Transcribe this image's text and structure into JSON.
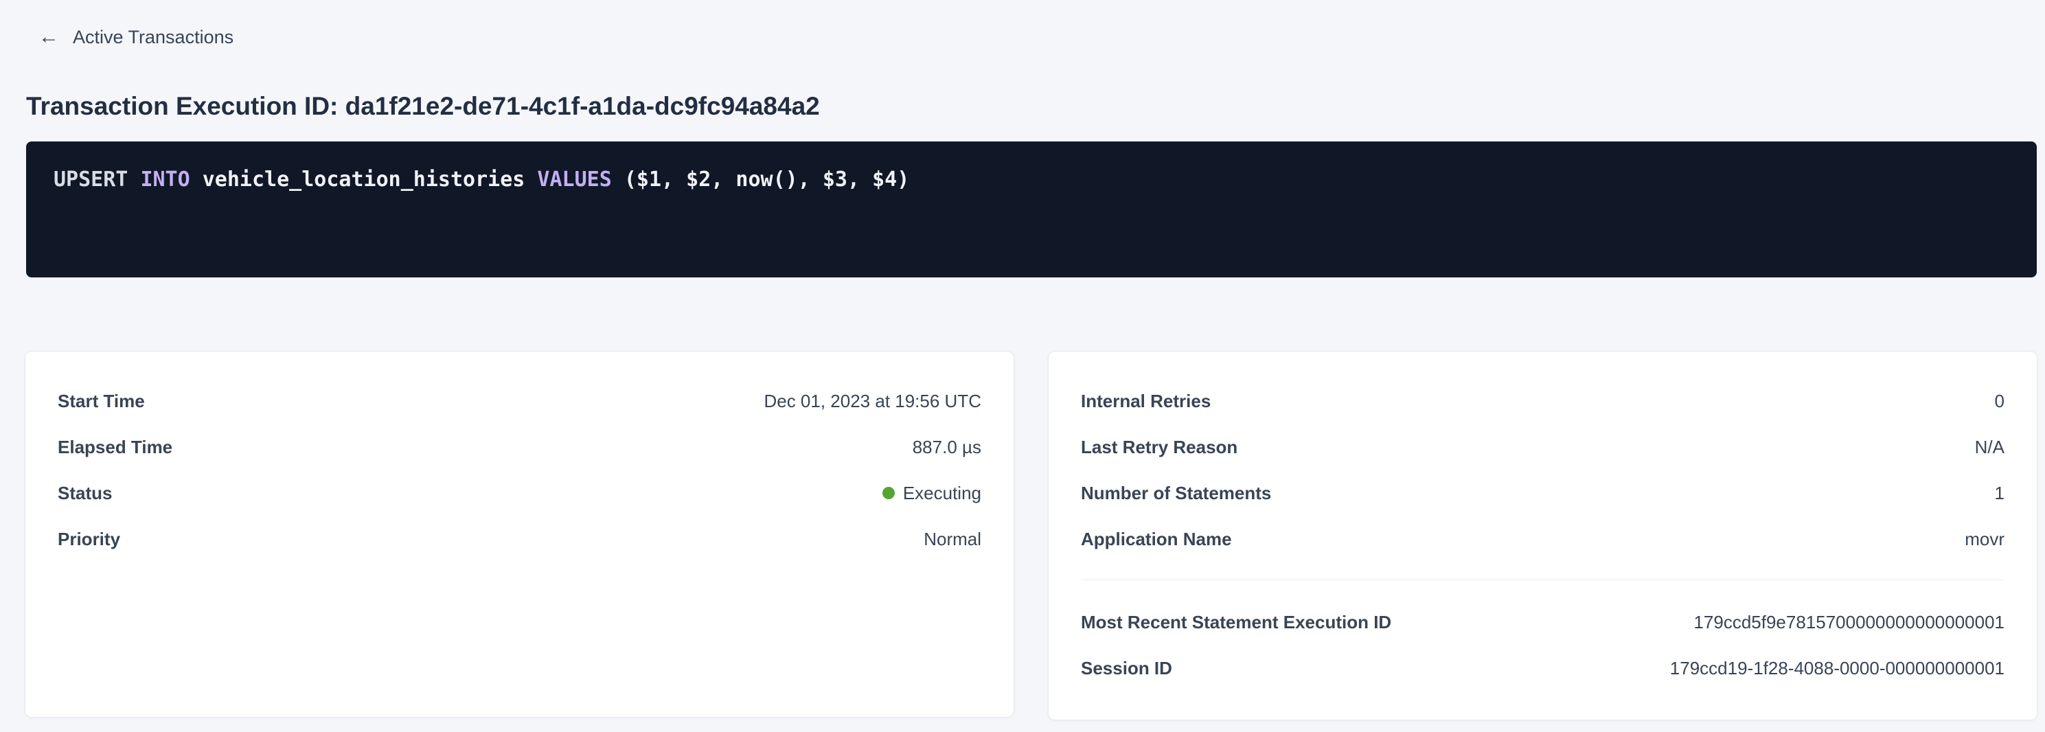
{
  "header": {
    "back_label": "Active Transactions",
    "back_arrow": "←",
    "title": "Transaction Execution ID: da1f21e2-de71-4c1f-a1da-dc9fc94a84a2"
  },
  "sql_box": {
    "statement": "UPSERT INTO vehicle_location_histories VALUES ($1, $2, now(), $3, $4)",
    "tokens": [
      {
        "text": "UPSERT ",
        "type": "plain"
      },
      {
        "text": "INTO ",
        "type": "keyword"
      },
      {
        "text": "vehicle_location_histories ",
        "type": "identifier"
      },
      {
        "text": "VALUES ",
        "type": "keyword"
      },
      {
        "text": "($1, $2, now(), $3, $4)",
        "type": "identifier"
      }
    ]
  },
  "cards": {
    "left": {
      "rows": [
        {
          "label": "Start Time",
          "value": "Dec 01, 2023 at 19:56 UTC"
        },
        {
          "label": "Elapsed Time",
          "value": "887.0 µs"
        },
        {
          "label": "Status",
          "value": "Executing"
        },
        {
          "label": "Priority",
          "value": "Normal"
        }
      ]
    },
    "right": {
      "rows": [
        {
          "label": "Internal Retries",
          "value": "0"
        },
        {
          "label": "Last Retry Reason",
          "value": "N/A"
        },
        {
          "label": "Number of Statements",
          "value": "1"
        },
        {
          "label": "Application Name",
          "value": "movr"
        }
      ],
      "link_rows": [
        {
          "label": "Most Recent Statement Execution ID",
          "value": "179ccd5f9e7815700000000000000001"
        },
        {
          "label": "Session ID",
          "value": "179ccd19-1f28-4088-0000-000000000001"
        }
      ]
    }
  },
  "colors": {
    "page_bg": "#f4f6fa",
    "card_bg": "#ffffff",
    "card_border": "#e4e9f0",
    "text_dark": "#394455",
    "title_text": "#242e42",
    "code_bg": "#101726",
    "code_keyword": "#c2b0f2",
    "code_identifier": "#f0f2f8",
    "code_plain": "#d9dde6",
    "link_blue": "#2b55f2",
    "status_green": "#55a532",
    "divider": "#e8edf3"
  }
}
